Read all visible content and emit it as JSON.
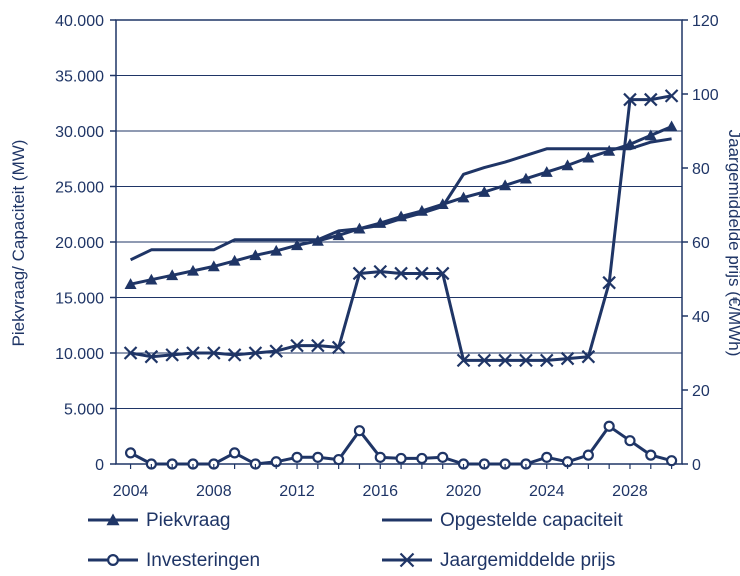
{
  "chart_data": {
    "type": "line",
    "x": [
      2004,
      2005,
      2006,
      2007,
      2008,
      2009,
      2010,
      2011,
      2012,
      2013,
      2014,
      2015,
      2016,
      2017,
      2018,
      2019,
      2020,
      2021,
      2022,
      2023,
      2024,
      2025,
      2026,
      2027,
      2028,
      2029,
      2030
    ],
    "x_ticks": [
      "2004",
      "2008",
      "2012",
      "2016",
      "2020",
      "2024",
      "2028"
    ],
    "x_tick_values": [
      2004,
      2008,
      2012,
      2016,
      2020,
      2024,
      2028
    ],
    "xlim": [
      2003.3,
      2030.5
    ],
    "ylabel_left": "Piekvraag/ Capaciteit (MW)",
    "ylabel_right": "Jaargemiddelde prijs (€/MWh)",
    "ylim_left": [
      0,
      40000
    ],
    "ylim_right": [
      0,
      120
    ],
    "y_ticks_left": [
      "0",
      "5.000",
      "10.000",
      "15.000",
      "20.000",
      "25.000",
      "30.000",
      "35.000",
      "40.000"
    ],
    "y_tick_values_left": [
      0,
      5000,
      10000,
      15000,
      20000,
      25000,
      30000,
      35000,
      40000
    ],
    "y_ticks_right": [
      "0",
      "20",
      "40",
      "60",
      "80",
      "100",
      "120"
    ],
    "y_tick_values_right": [
      0,
      20,
      40,
      60,
      80,
      100,
      120
    ],
    "grid": "horizontal",
    "legend_position": "bottom",
    "color": "#1f3566",
    "series": [
      {
        "name": "Piekvraag",
        "axis": "left",
        "marker": "triangle",
        "values": [
          16200,
          16600,
          17000,
          17400,
          17800,
          18300,
          18800,
          19200,
          19700,
          20100,
          20600,
          21200,
          21700,
          22300,
          22800,
          23400,
          24000,
          24500,
          25100,
          25700,
          26300,
          26900,
          27600,
          28200,
          28800,
          29600,
          30400
        ]
      },
      {
        "name": "Opgestelde capaciteit",
        "axis": "left",
        "marker": "none",
        "values": [
          18400,
          19300,
          19300,
          19300,
          19300,
          20200,
          20200,
          20200,
          20200,
          20200,
          21000,
          21200,
          21500,
          22100,
          22600,
          23200,
          26100,
          26700,
          27200,
          27800,
          28400,
          28400,
          28400,
          28400,
          28400,
          29000,
          29300
        ]
      },
      {
        "name": "Investeringen",
        "axis": "left",
        "marker": "circle",
        "values": [
          1000,
          0,
          0,
          0,
          0,
          1000,
          0,
          200,
          600,
          600,
          400,
          3000,
          600,
          500,
          500,
          600,
          0,
          0,
          0,
          0,
          600,
          200,
          800,
          3400,
          2100,
          800,
          300
        ]
      },
      {
        "name": "Jaargemiddelde prijs",
        "axis": "right",
        "marker": "x",
        "values": [
          30,
          29,
          29.5,
          30,
          30,
          29.5,
          30,
          30.5,
          32,
          32,
          31.5,
          51.5,
          52,
          51.5,
          51.5,
          51.5,
          28,
          28,
          28,
          28,
          28,
          28.5,
          29,
          49,
          98.5,
          98.5,
          99.5
        ]
      }
    ]
  }
}
